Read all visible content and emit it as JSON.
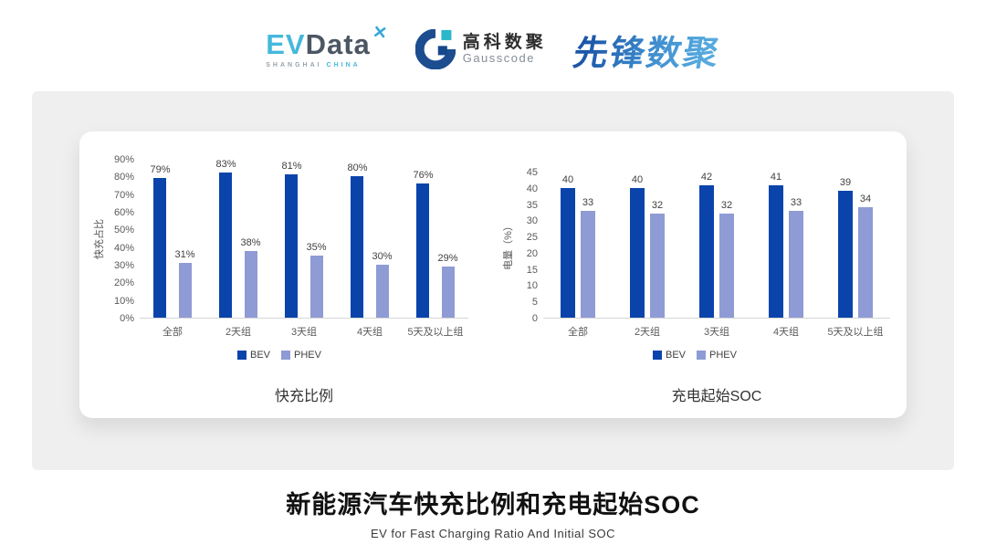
{
  "header": {
    "evdata": {
      "ev": "EV",
      "data": "Data",
      "mark": "✕",
      "sub_left": "SHANGHAI",
      "sub_right": "CHINA"
    },
    "gausscode": {
      "cn": "高科数聚",
      "en": "Gausscode"
    },
    "xianfeng": {
      "text": "先锋数聚"
    }
  },
  "colors": {
    "bev": "#0a44ab",
    "phev": "#8f9bd5",
    "baseline": "#d6d6d6",
    "evdata_blue": "#45b8dc",
    "gausscode_navy": "#1c4d8f",
    "gausscode_cyan": "#29b7c9"
  },
  "chart_data": [
    {
      "type": "bar",
      "title": "快充比例",
      "ylabel": "快充占比",
      "categories": [
        "全部",
        "2天组",
        "3天组",
        "4天组",
        "5天及以上组"
      ],
      "series": [
        {
          "name": "BEV",
          "values": [
            79,
            83,
            81,
            80,
            76
          ]
        },
        {
          "name": "PHEV",
          "values": [
            31,
            38,
            35,
            30,
            29
          ]
        }
      ],
      "ylim": [
        0,
        90
      ],
      "ytick_step": 10,
      "tick_format": "percent",
      "label_format": "percent",
      "grid": false,
      "legend_position": "bottom"
    },
    {
      "type": "bar",
      "title": "充电起始SOC",
      "ylabel": "电量（%）",
      "categories": [
        "全部",
        "2天组",
        "3天组",
        "4天组",
        "5天及以上组"
      ],
      "series": [
        {
          "name": "BEV",
          "values": [
            40,
            40,
            42,
            41,
            39
          ]
        },
        {
          "name": "PHEV",
          "values": [
            33,
            32,
            32,
            33,
            34
          ]
        }
      ],
      "ylim": [
        0,
        45
      ],
      "ytick_step": 5,
      "tick_format": "number",
      "label_format": "number",
      "grid": false,
      "legend_position": "bottom"
    }
  ],
  "footer": {
    "title": "新能源汽车快充比例和充电起始SOC",
    "subtitle": "EV for Fast Charging Ratio And Initial SOC"
  }
}
